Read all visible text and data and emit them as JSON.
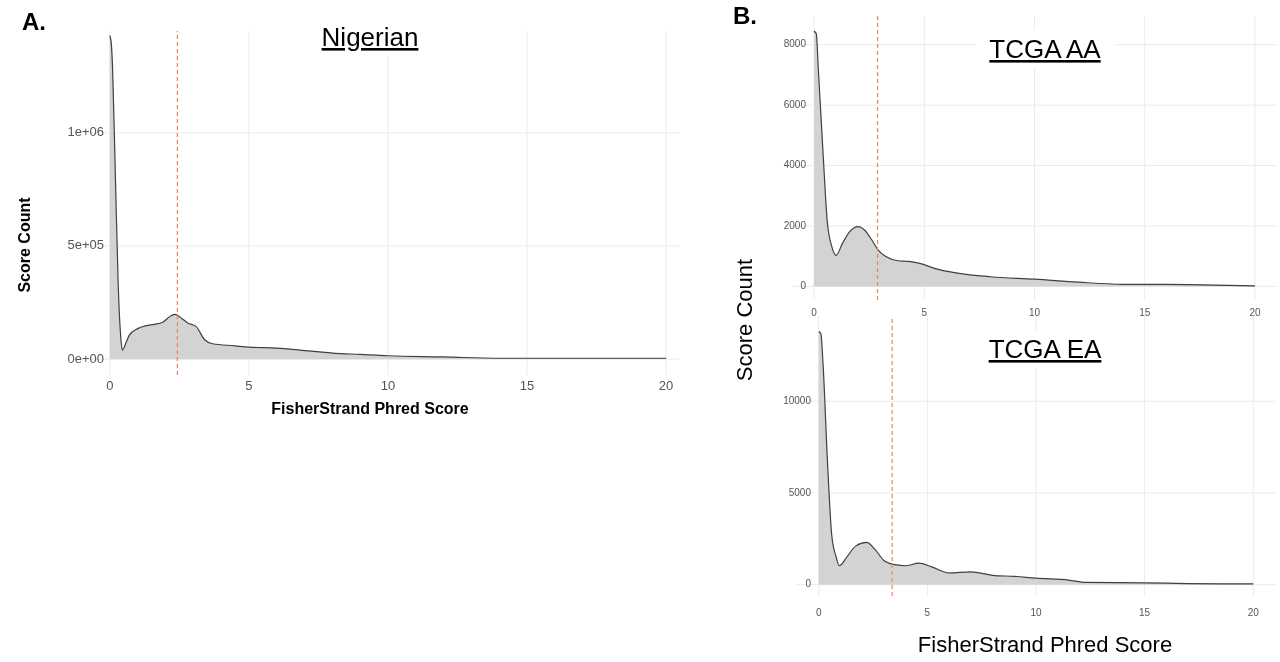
{
  "chart_data": [
    {
      "type": "area",
      "title": "Nigerian",
      "xlabel": "FisherStrand Phred Score",
      "ylabel": "Score Count",
      "annotations": [
        "A."
      ],
      "grid": true,
      "xlim": [
        -1,
        20.5
      ],
      "xticks": [
        0,
        5,
        10,
        15,
        20
      ],
      "ylim": [
        -70000,
        1450000
      ],
      "yticks": [
        {
          "value": 0,
          "label": "0e+00"
        },
        {
          "value": 500000,
          "label": "5e+05"
        },
        {
          "value": 1000000,
          "label": "1e+06"
        }
      ],
      "x": [
        0,
        0.05,
        0.1,
        0.2,
        0.3,
        0.4,
        0.45,
        0.6,
        0.7,
        1,
        1.3,
        1.6,
        1.9,
        2.2,
        2.35,
        2.6,
        2.8,
        3.1,
        3.4,
        3.7,
        4.5,
        5,
        6,
        7,
        8,
        9,
        10,
        12,
        14,
        17,
        20
      ],
      "series": [
        {
          "color": "#d3d3d3",
          "values": [
            1430000,
            1400000,
            1285000,
            810000,
            335000,
            87000,
            40000,
            78000,
            106000,
            135000,
            148000,
            154000,
            163000,
            192000,
            198000,
            179000,
            160000,
            145000,
            87000,
            68000,
            59000,
            53000,
            49000,
            38000,
            27000,
            21000,
            15000,
            10000,
            4000,
            4000,
            4000
          ]
        }
      ],
      "ref_lines": [
        {
          "axis": "x",
          "value": 2.43,
          "color": "#f08060",
          "line_style": "dashed"
        }
      ]
    },
    {
      "type": "area",
      "title": "TCGA AA",
      "annotations": [
        "B."
      ],
      "grid": true,
      "xlim": [
        -1,
        21
      ],
      "xticks": [
        0,
        5,
        10,
        15,
        20
      ],
      "ylim": [
        -450,
        8950
      ],
      "yticks": [
        0,
        2000,
        4000,
        6000,
        8000
      ],
      "x": [
        0,
        0.1,
        0.2,
        0.4,
        0.6,
        0.8,
        1,
        1.3,
        1.6,
        2,
        2.3,
        2.6,
        2.9,
        3.3,
        3.8,
        4.3,
        4.8,
        5.5,
        6.5,
        8,
        10,
        12,
        14,
        17,
        20
      ],
      "series": [
        {
          "color": "#d3d3d3",
          "values": [
            8450,
            8370,
            7120,
            4520,
            2150,
            1330,
            1030,
            1440,
            1800,
            1980,
            1860,
            1560,
            1210,
            970,
            850,
            830,
            760,
            590,
            440,
            320,
            240,
            140,
            70,
            60,
            20
          ]
        }
      ],
      "ref_lines": [
        {
          "axis": "x",
          "value": 2.88,
          "color": "#f08060",
          "line_style": "dashed"
        }
      ]
    },
    {
      "type": "area",
      "title": "TCGA EA",
      "xlabel": "FisherStrand Phred Score",
      "ylabel": "Score Count",
      "grid": true,
      "xlim": [
        -1,
        21
      ],
      "xticks": [
        0,
        5,
        10,
        15,
        20
      ],
      "ylim": [
        -620,
        14650
      ],
      "yticks": [
        0,
        5000,
        10000
      ],
      "x": [
        0,
        0.1,
        0.2,
        0.4,
        0.6,
        0.8,
        0.95,
        1.3,
        1.7,
        2.2,
        2.6,
        3,
        3.5,
        4,
        4.6,
        5.2,
        6,
        7,
        8,
        9,
        10,
        11.5,
        12.3,
        15,
        17,
        20
      ],
      "series": [
        {
          "color": "#d3d3d3",
          "values": [
            13810,
            13680,
            12020,
            6770,
            2680,
            1520,
            1030,
            1520,
            2100,
            2300,
            1910,
            1320,
            1090,
            1030,
            1170,
            970,
            640,
            700,
            510,
            450,
            350,
            250,
            120,
            100,
            60,
            40
          ]
        }
      ],
      "ref_lines": [
        {
          "axis": "x",
          "value": 3.38,
          "color": "#f08060",
          "line_style": "dashed"
        }
      ]
    }
  ]
}
